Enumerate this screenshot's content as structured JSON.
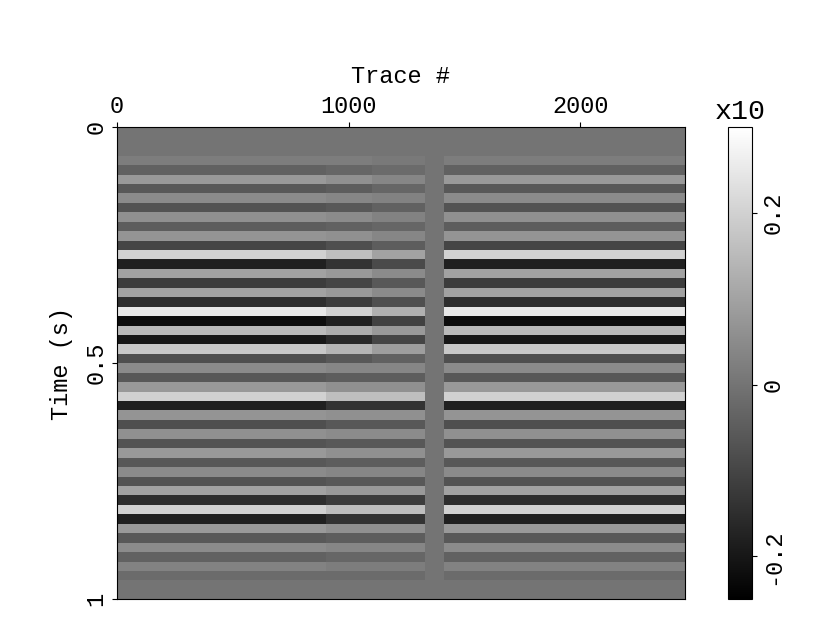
{
  "chart_data": {
    "type": "heatmap",
    "xlabel": "Trace #",
    "ylabel": "Time (s)",
    "xlim": [
      0,
      2450
    ],
    "xticks": [
      0,
      1000,
      2000
    ],
    "ylim": [
      1,
      0
    ],
    "yticks": [
      0,
      0.5,
      1
    ],
    "x_edges": [
      0,
      900,
      1100,
      1330,
      1410,
      2450
    ],
    "y_edges": [
      0,
      0.02,
      0.04,
      0.06,
      0.08,
      0.1,
      0.12,
      0.14,
      0.16,
      0.18,
      0.2,
      0.22,
      0.24,
      0.26,
      0.28,
      0.3,
      0.32,
      0.34,
      0.36,
      0.38,
      0.4,
      0.42,
      0.44,
      0.46,
      0.48,
      0.5,
      0.52,
      0.54,
      0.56,
      0.58,
      0.6,
      0.62,
      0.64,
      0.66,
      0.68,
      0.7,
      0.72,
      0.74,
      0.76,
      0.78,
      0.8,
      0.82,
      0.84,
      0.86,
      0.88,
      0.9,
      0.92,
      0.94,
      0.96,
      0.98,
      1.0
    ],
    "cells": [
      [
        0,
        0,
        0,
        0,
        0
      ],
      [
        0,
        0,
        0,
        0,
        0
      ],
      [
        0,
        0,
        0,
        0,
        0
      ],
      [
        0.02,
        0.02,
        0.01,
        0,
        0.02
      ],
      [
        -0.04,
        -0.03,
        -0.02,
        0,
        -0.04
      ],
      [
        0.08,
        0.06,
        0.04,
        0,
        0.08
      ],
      [
        -0.06,
        -0.05,
        -0.03,
        0,
        -0.06
      ],
      [
        0.05,
        0.04,
        0.03,
        0,
        0.05
      ],
      [
        -0.07,
        -0.06,
        -0.04,
        0,
        -0.07
      ],
      [
        0.06,
        0.05,
        0.03,
        0,
        0.06
      ],
      [
        -0.05,
        -0.04,
        -0.03,
        0,
        -0.05
      ],
      [
        0.07,
        0.06,
        0.04,
        0,
        0.07
      ],
      [
        -0.1,
        -0.08,
        -0.05,
        0,
        -0.1
      ],
      [
        0.2,
        0.16,
        0.1,
        0,
        0.2
      ],
      [
        -0.18,
        -0.14,
        -0.09,
        0,
        -0.18
      ],
      [
        0.1,
        0.08,
        0.05,
        0,
        0.1
      ],
      [
        -0.12,
        -0.1,
        -0.06,
        0,
        -0.12
      ],
      [
        0.1,
        0.08,
        0.05,
        0,
        0.1
      ],
      [
        -0.15,
        -0.12,
        -0.08,
        0,
        -0.15
      ],
      [
        0.25,
        0.2,
        0.13,
        0,
        0.25
      ],
      [
        -0.22,
        -0.18,
        -0.11,
        0,
        -0.22
      ],
      [
        0.15,
        0.12,
        0.08,
        0,
        0.15
      ],
      [
        -0.2,
        -0.16,
        -0.1,
        0,
        -0.2
      ],
      [
        0.18,
        0.14,
        0.09,
        0,
        0.18
      ],
      [
        -0.08,
        -0.06,
        -0.04,
        0,
        -0.08
      ],
      [
        0.05,
        0.04,
        0.04,
        0,
        0.05
      ],
      [
        -0.06,
        -0.05,
        -0.05,
        0,
        -0.06
      ],
      [
        0.08,
        0.06,
        0.06,
        0,
        0.08
      ],
      [
        0.2,
        0.16,
        0.16,
        0,
        0.2
      ],
      [
        -0.18,
        -0.14,
        -0.14,
        0,
        -0.18
      ],
      [
        0.07,
        0.06,
        0.06,
        0,
        0.07
      ],
      [
        -0.08,
        -0.06,
        -0.06,
        0,
        -0.08
      ],
      [
        0.06,
        0.05,
        0.05,
        0,
        0.06
      ],
      [
        -0.07,
        -0.06,
        -0.06,
        0,
        -0.07
      ],
      [
        0.08,
        0.06,
        0.06,
        0,
        0.08
      ],
      [
        -0.06,
        -0.05,
        -0.05,
        0,
        -0.06
      ],
      [
        0.05,
        0.04,
        0.04,
        0,
        0.05
      ],
      [
        -0.07,
        -0.06,
        -0.06,
        0,
        -0.07
      ],
      [
        0.1,
        0.08,
        0.08,
        0,
        0.1
      ],
      [
        -0.15,
        -0.12,
        -0.12,
        0,
        -0.15
      ],
      [
        0.2,
        0.16,
        0.16,
        0,
        0.2
      ],
      [
        -0.18,
        -0.14,
        -0.14,
        0,
        -0.18
      ],
      [
        0.08,
        0.06,
        0.06,
        0,
        0.08
      ],
      [
        -0.06,
        -0.05,
        -0.05,
        0,
        -0.06
      ],
      [
        0.05,
        0.04,
        0.04,
        0,
        0.05
      ],
      [
        -0.04,
        -0.03,
        -0.03,
        0,
        -0.04
      ],
      [
        0.03,
        0.02,
        0.02,
        0,
        0.03
      ],
      [
        -0.02,
        -0.02,
        -0.02,
        0,
        -0.02
      ],
      [
        0,
        0,
        0,
        0,
        0
      ],
      [
        0,
        0,
        0,
        0,
        0
      ]
    ],
    "colorbar": {
      "title": "x10",
      "range": [
        -0.25,
        0.3
      ],
      "ticks": [
        -0.2,
        0,
        0.2
      ]
    }
  }
}
